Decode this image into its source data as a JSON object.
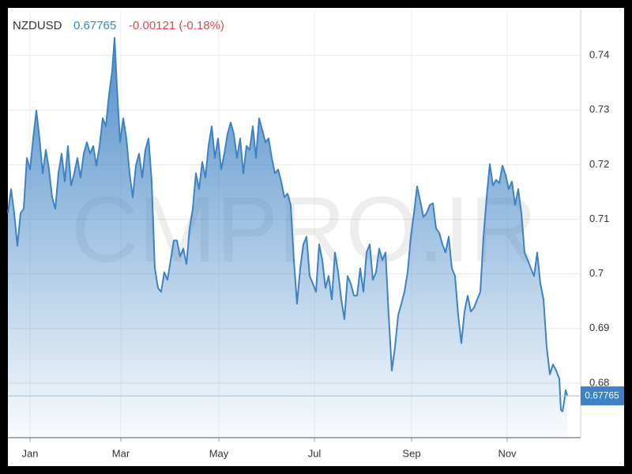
{
  "chart_data": {
    "type": "area",
    "symbol": "NZDUSD",
    "last": 0.67765,
    "change": "-0.00121 (-0.18%)",
    "watermark": "CMPRO.IR",
    "color": "#3d82c4",
    "grid": true,
    "xlim": [
      0,
      362
    ],
    "ylim": [
      0.67,
      0.7484
    ],
    "xticks": [
      {
        "value": 14,
        "label": "Jan"
      },
      {
        "value": 71.5,
        "label": "Mar"
      },
      {
        "value": 133.5,
        "label": "May"
      },
      {
        "value": 194,
        "label": "Jul"
      },
      {
        "value": 255.5,
        "label": "Sep"
      },
      {
        "value": 316,
        "label": "Nov"
      }
    ],
    "yticks": [
      0.68,
      0.69,
      0.7,
      0.71,
      0.72,
      0.73,
      0.74
    ],
    "x": [
      0,
      2,
      4,
      6,
      8,
      10,
      12,
      14,
      16,
      18,
      20,
      22,
      24,
      26,
      28,
      30,
      32,
      34,
      36,
      38,
      40,
      42,
      44,
      46,
      48,
      50,
      52,
      54,
      56,
      58,
      60,
      62,
      64,
      66,
      67.5,
      69,
      71,
      73,
      75,
      77,
      79,
      81,
      83,
      85,
      87,
      89,
      91,
      93,
      95,
      97,
      99,
      101,
      103,
      105,
      107,
      109,
      111,
      113,
      115,
      117,
      119,
      121,
      123,
      125,
      127,
      129,
      131,
      133,
      135,
      137,
      139,
      141,
      143,
      145,
      147,
      149,
      151,
      153,
      155,
      157,
      159,
      161,
      163,
      165,
      167,
      169,
      171,
      173,
      175,
      177,
      179,
      181,
      183,
      185,
      187,
      189,
      191,
      193,
      195,
      197,
      199,
      201,
      203,
      205,
      207,
      209,
      211,
      213,
      215,
      217,
      219,
      221,
      223,
      225,
      227,
      229,
      231,
      233,
      235,
      237,
      239,
      241,
      243,
      245,
      247,
      249,
      251,
      253,
      255,
      257,
      259,
      261,
      263,
      265,
      267,
      269,
      271,
      273,
      275,
      277,
      279,
      281,
      283,
      285,
      287,
      289,
      291,
      293,
      295,
      297,
      299,
      301,
      303,
      305,
      307,
      309,
      311,
      313,
      315,
      317,
      319,
      321,
      323,
      325,
      327,
      329,
      331,
      333,
      335,
      337,
      339,
      341,
      343,
      345,
      347,
      349,
      350,
      351,
      352,
      353,
      354
    ],
    "values": [
      0.7111,
      0.7155,
      0.7111,
      0.7051,
      0.7111,
      0.7119,
      0.7212,
      0.7191,
      0.7248,
      0.7299,
      0.7248,
      0.7184,
      0.7227,
      0.7191,
      0.714,
      0.7119,
      0.7184,
      0.722,
      0.7169,
      0.7234,
      0.7162,
      0.7184,
      0.7212,
      0.7176,
      0.722,
      0.7241,
      0.722,
      0.7234,
      0.7198,
      0.7234,
      0.7285,
      0.727,
      0.7328,
      0.7371,
      0.7432,
      0.7342,
      0.7241,
      0.7285,
      0.7248,
      0.7184,
      0.714,
      0.7198,
      0.722,
      0.7176,
      0.7227,
      0.7248,
      0.7169,
      0.701,
      0.6974,
      0.6967,
      0.7003,
      0.6989,
      0.7025,
      0.7061,
      0.7061,
      0.7032,
      0.7046,
      0.7018,
      0.7083,
      0.7119,
      0.7184,
      0.7155,
      0.7205,
      0.7176,
      0.7234,
      0.727,
      0.7212,
      0.7248,
      0.7191,
      0.722,
      0.7256,
      0.7277,
      0.7256,
      0.7212,
      0.7248,
      0.7184,
      0.7234,
      0.7227,
      0.727,
      0.7212,
      0.7285,
      0.7263,
      0.7241,
      0.7248,
      0.7212,
      0.7184,
      0.7191,
      0.7169,
      0.714,
      0.7147,
      0.7126,
      0.7025,
      0.6945,
      0.701,
      0.7054,
      0.7068,
      0.6996,
      0.6982,
      0.6967,
      0.7054,
      0.7025,
      0.6974,
      0.6996,
      0.6953,
      0.7039,
      0.7003,
      0.6953,
      0.6917,
      0.6996,
      0.6982,
      0.696,
      0.696,
      0.701,
      0.6967,
      0.7039,
      0.7054,
      0.6989,
      0.7003,
      0.7046,
      0.7025,
      0.7039,
      0.6924,
      0.6823,
      0.6866,
      0.6924,
      0.6945,
      0.6967,
      0.7003,
      0.7068,
      0.7111,
      0.716,
      0.7133,
      0.7104,
      0.7111,
      0.7126,
      0.7129,
      0.7083,
      0.7075,
      0.7054,
      0.7039,
      0.7068,
      0.701,
      0.6996,
      0.6924,
      0.6873,
      0.6931,
      0.696,
      0.6931,
      0.6938,
      0.6953,
      0.6967,
      0.7068,
      0.714,
      0.7201,
      0.7162,
      0.7172,
      0.7166,
      0.7198,
      0.7181,
      0.7155,
      0.7169,
      0.7126,
      0.7155,
      0.7111,
      0.7039,
      0.7025,
      0.701,
      0.6996,
      0.7039,
      0.6982,
      0.6953,
      0.6866,
      0.6816,
      0.6834,
      0.6823,
      0.6808,
      0.6751,
      0.6748,
      0.6765,
      0.6787,
      0.6777
    ]
  }
}
